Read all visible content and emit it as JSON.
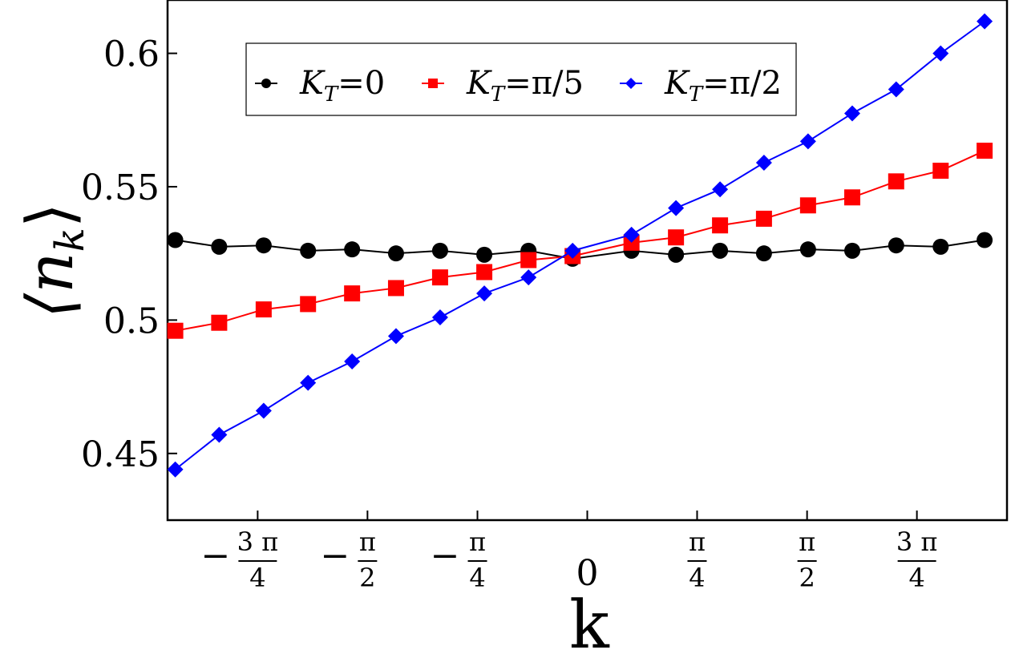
{
  "chart_data": {
    "type": "line",
    "title": "",
    "xlabel": "k",
    "ylabel": "⟨n",
    "ylabel_sub": "k",
    "ylabel_close": "⟩",
    "xlim": [
      -3.0,
      3.0
    ],
    "ylim": [
      0.425,
      0.62
    ],
    "grid": false,
    "legend_position": "top-left",
    "x_ticks": [
      {
        "value": -2.356,
        "num": "3 π",
        "den": "4",
        "sign": "−"
      },
      {
        "value": -1.571,
        "num": "π",
        "den": "2",
        "sign": "−"
      },
      {
        "value": -0.785,
        "num": "π",
        "den": "4",
        "sign": "−"
      },
      {
        "value": 0,
        "label": "0"
      },
      {
        "value": 0.785,
        "num": "π",
        "den": "4",
        "sign": ""
      },
      {
        "value": 1.571,
        "num": "π",
        "den": "2",
        "sign": ""
      },
      {
        "value": 2.356,
        "num": "3 π",
        "den": "4",
        "sign": ""
      }
    ],
    "y_ticks": [
      {
        "value": 0.45,
        "label": "0.45"
      },
      {
        "value": 0.5,
        "label": "0.5"
      },
      {
        "value": 0.55,
        "label": "0.55"
      },
      {
        "value": 0.6,
        "label": "0.6"
      }
    ],
    "x": [
      -2.945,
      -2.631,
      -2.313,
      -1.996,
      -1.681,
      -1.367,
      -1.052,
      -0.736,
      -0.42,
      -0.105,
      0.316,
      0.634,
      0.949,
      1.263,
      1.578,
      1.894,
      2.208,
      2.526,
      2.84
    ],
    "series": [
      {
        "name_main": "K",
        "name_sub": "T",
        "name_rest": "=0",
        "color": "#000000",
        "marker": "circle",
        "values": [
          0.53,
          0.5275,
          0.528,
          0.526,
          0.5265,
          0.525,
          0.526,
          0.5245,
          0.526,
          0.523,
          0.526,
          0.5245,
          0.526,
          0.525,
          0.5265,
          0.526,
          0.528,
          0.5275,
          0.53
        ]
      },
      {
        "name_main": "K",
        "name_sub": "T",
        "name_rest": "=π/5",
        "color": "#ff0000",
        "marker": "square",
        "values": [
          0.496,
          0.499,
          0.504,
          0.506,
          0.51,
          0.512,
          0.516,
          0.518,
          0.5225,
          0.524,
          0.529,
          0.531,
          0.5355,
          0.538,
          0.543,
          0.546,
          0.552,
          0.556,
          0.5635
        ]
      },
      {
        "name_main": "K",
        "name_sub": "T",
        "name_rest": "=π/2",
        "color": "#0000ff",
        "marker": "diamond",
        "values": [
          0.444,
          0.457,
          0.466,
          0.4765,
          0.4845,
          0.494,
          0.501,
          0.51,
          0.516,
          0.526,
          0.532,
          0.542,
          0.549,
          0.559,
          0.567,
          0.5775,
          0.5865,
          0.6,
          0.612
        ]
      }
    ]
  }
}
